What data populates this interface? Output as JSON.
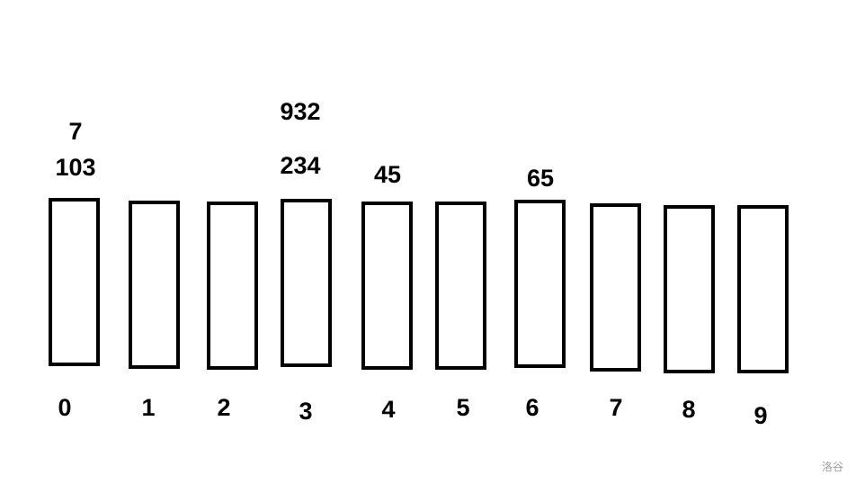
{
  "buckets": [
    {
      "index": "0",
      "items": [
        "7",
        "103"
      ]
    },
    {
      "index": "1",
      "items": []
    },
    {
      "index": "2",
      "items": []
    },
    {
      "index": "3",
      "items": [
        "932",
        "234"
      ]
    },
    {
      "index": "4",
      "items": [
        "45"
      ]
    },
    {
      "index": "5",
      "items": []
    },
    {
      "index": "6",
      "items": [
        "65"
      ]
    },
    {
      "index": "7",
      "items": []
    },
    {
      "index": "8",
      "items": []
    },
    {
      "index": "9",
      "items": []
    }
  ],
  "watermark": "洛谷"
}
